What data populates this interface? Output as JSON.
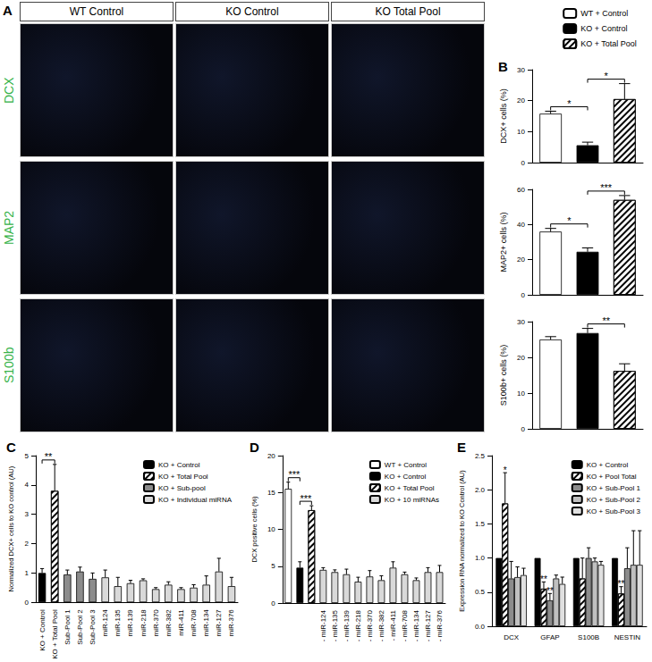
{
  "panel_a": {
    "label": "A",
    "columns": [
      "WT Control",
      "KO Control",
      "KO Total Pool"
    ],
    "rows": [
      "DCX",
      "MAP2",
      "S100b"
    ]
  },
  "chart_data": [
    {
      "panel": "B",
      "type": "bar",
      "y_label": "DCX+ cells (%)",
      "categories": [
        null,
        null,
        null
      ],
      "series": [
        {
          "name": "WT + Control",
          "color": "#ffffff",
          "values": [
            15.8,
            null,
            null
          ],
          "errors": [
            0.8,
            null,
            null
          ]
        },
        {
          "name": "KO + Control",
          "color": "#000000",
          "values": [
            null,
            5.6,
            null
          ],
          "errors": [
            null,
            1.0,
            null
          ]
        },
        {
          "name": "KO + Total Pool",
          "color": "#ffffff",
          "values": [
            null,
            null,
            20.5
          ],
          "errors": [
            null,
            null,
            5.0
          ]
        }
      ],
      "ylim": [
        0,
        30
      ],
      "yticks": [
        0,
        10,
        20,
        30
      ],
      "grid": false,
      "legend": "top-right",
      "tick_labels": "y",
      "annotations": [
        {
          "between": [
            "WT + Control",
            "KO + Control"
          ],
          "text": "*"
        },
        {
          "between": [
            "KO + Control",
            "KO + Total Pool"
          ],
          "text": "*"
        }
      ]
    },
    {
      "type": "bar",
      "y_label": "MAP2+ cells (%)",
      "categories": [
        null,
        null,
        null
      ],
      "series": [
        {
          "name": "WT + Control",
          "color": "#ffffff",
          "values": [
            36,
            null,
            null
          ],
          "errors": [
            1.8,
            null,
            null
          ]
        },
        {
          "name": "KO + Control",
          "color": "#000000",
          "values": [
            null,
            24.5,
            null
          ],
          "errors": [
            null,
            2.2,
            null
          ]
        },
        {
          "name": "KO + Total Pool",
          "color": "#ffffff",
          "values": [
            null,
            null,
            54
          ],
          "errors": [
            null,
            null,
            2.5
          ]
        }
      ],
      "ylim": [
        0,
        60
      ],
      "yticks": [
        0,
        20,
        40,
        60
      ],
      "grid": false,
      "tick_labels": "y",
      "annotations": [
        {
          "between": [
            "WT + Control",
            "KO + Control"
          ],
          "text": "*"
        },
        {
          "between": [
            "KO + Control",
            "KO + Total Pool"
          ],
          "text": "***"
        }
      ]
    },
    {
      "type": "bar",
      "y_label": "S100b+ cells (%)",
      "categories": [
        null,
        null,
        null
      ],
      "series": [
        {
          "name": "WT + Control",
          "color": "#ffffff",
          "values": [
            25,
            null,
            null
          ],
          "errors": [
            0.8,
            null,
            null
          ]
        },
        {
          "name": "KO + Control",
          "color": "#000000",
          "values": [
            null,
            26.8,
            null
          ],
          "errors": [
            null,
            1.3,
            null
          ]
        },
        {
          "name": "KO + Total Pool",
          "color": "#ffffff",
          "values": [
            null,
            null,
            16.2
          ],
          "errors": [
            null,
            null,
            2.0
          ]
        }
      ],
      "ylim": [
        0,
        30
      ],
      "yticks": [
        0,
        10,
        20,
        30
      ],
      "grid": false,
      "tick_labels": "y",
      "annotations": [
        {
          "between": [
            "KO + Control",
            "KO + Total Pool"
          ],
          "text": "**"
        }
      ]
    },
    {
      "panel": "C",
      "type": "bar",
      "y_label": "Normalized DCX+ cells to KO control (AU)",
      "categories": [
        "KO + Control",
        "KO + Total Pool",
        "Sub-Pool 1",
        "Sub-Pool 2",
        "Sub-Pool 3",
        "miR-124",
        "miR-135",
        "miR-139",
        "miR-218",
        "miR-370",
        "miR-382",
        "miR-411",
        "miR-708",
        "miR-134",
        "miR-127",
        "miR-376"
      ],
      "series": [
        {
          "name": "KO + Control",
          "color": "#000000",
          "values": [
            1.0,
            null,
            null,
            null,
            null,
            null,
            null,
            null,
            null,
            null,
            null,
            null,
            null,
            null,
            null,
            null
          ],
          "errors": [
            0.15,
            null,
            null,
            null,
            null,
            null,
            null,
            null,
            null,
            null,
            null,
            null,
            null,
            null,
            null,
            null
          ]
        },
        {
          "name": "KO + Total Pool",
          "color": "#ffffff",
          "values": [
            null,
            3.8,
            null,
            null,
            null,
            null,
            null,
            null,
            null,
            null,
            null,
            null,
            null,
            null,
            null,
            null
          ],
          "errors": [
            null,
            0.9,
            null,
            null,
            null,
            null,
            null,
            null,
            null,
            null,
            null,
            null,
            null,
            null,
            null,
            null
          ]
        },
        {
          "name": "KO + Sub-pool",
          "color": "#8c8c8c",
          "values": [
            null,
            null,
            0.95,
            1.05,
            0.8,
            null,
            null,
            null,
            null,
            null,
            null,
            null,
            null,
            null,
            null,
            null
          ],
          "errors": [
            null,
            null,
            0.15,
            0.15,
            0.2,
            null,
            null,
            null,
            null,
            null,
            null,
            null,
            null,
            null,
            null,
            null
          ]
        },
        {
          "name": "KO + Individual miRNA",
          "color": "#d9d9d9",
          "values": [
            null,
            null,
            null,
            null,
            null,
            0.85,
            0.55,
            0.65,
            0.75,
            0.45,
            0.6,
            0.45,
            0.5,
            0.6,
            1.05,
            0.55
          ],
          "errors": [
            null,
            null,
            null,
            null,
            null,
            0.25,
            0.3,
            0.1,
            0.05,
            0.05,
            0.1,
            0.05,
            0.1,
            0.3,
            0.45,
            0.3
          ]
        }
      ],
      "ylim": [
        0,
        5
      ],
      "yticks": [
        0,
        1,
        2,
        3,
        4,
        5
      ],
      "grid": false,
      "legend": "top-right",
      "annotations": [
        {
          "between": [
            "KO + Control",
            "KO + Total Pool"
          ],
          "text": "**"
        }
      ]
    },
    {
      "panel": "D",
      "type": "bar",
      "y_label": "DCX positive cells (%)",
      "categories": [
        null,
        null,
        null,
        "- miR-124",
        "- miR-135",
        "- miR-139",
        "- miR-218",
        "- miR-370",
        "- miR-382",
        "- miR-411",
        "- miR-708",
        "- miR-134",
        "- miR-127",
        "- miR-376"
      ],
      "series": [
        {
          "name": "WT + Control",
          "color": "#ffffff",
          "values": [
            15.5,
            null,
            null,
            null,
            null,
            null,
            null,
            null,
            null,
            null,
            null,
            null,
            null,
            null
          ],
          "errors": [
            0.9,
            null,
            null,
            null,
            null,
            null,
            null,
            null,
            null,
            null,
            null,
            null,
            null,
            null
          ]
        },
        {
          "name": "KO + Control",
          "color": "#000000",
          "values": [
            null,
            4.8,
            null,
            null,
            null,
            null,
            null,
            null,
            null,
            null,
            null,
            null,
            null,
            null
          ],
          "errors": [
            null,
            0.8,
            null,
            null,
            null,
            null,
            null,
            null,
            null,
            null,
            null,
            null,
            null,
            null
          ]
        },
        {
          "name": "KO + Total Pool",
          "color": "#ffffff",
          "values": [
            null,
            null,
            12.6,
            null,
            null,
            null,
            null,
            null,
            null,
            null,
            null,
            null,
            null,
            null
          ],
          "errors": [
            null,
            null,
            0.6,
            null,
            null,
            null,
            null,
            null,
            null,
            null,
            null,
            null,
            null,
            null
          ]
        },
        {
          "name": "KO + 10 miRNAs",
          "color": "#d9d9d9",
          "values": [
            null,
            null,
            null,
            4.5,
            4.2,
            3.9,
            2.9,
            3.6,
            3.1,
            4.8,
            3.9,
            3.1,
            4.2,
            4.2
          ],
          "errors": [
            null,
            null,
            null,
            0.3,
            0.3,
            0.7,
            0.6,
            0.8,
            0.6,
            0.8,
            0.3,
            0.3,
            0.6,
            0.9
          ]
        }
      ],
      "ylim": [
        0,
        20
      ],
      "yticks": [
        0,
        5,
        10,
        15,
        20
      ],
      "grid": false,
      "legend": "top-right",
      "annotations": [
        {
          "between": [
            "WT + Control",
            "KO + Control"
          ],
          "text": "***"
        },
        {
          "between": [
            "KO + Control",
            "KO + Total Pool"
          ],
          "text": "***"
        }
      ]
    },
    {
      "panel": "E",
      "type": "bar",
      "y_label": "Expression RNA normalized to KO Control (AU)",
      "categories": [
        "DCX",
        "GFAP",
        "S100B",
        "NESTIN"
      ],
      "series": [
        {
          "name": "KO + Control",
          "color": "#000000",
          "values": [
            1.0,
            1.0,
            1.0,
            1.0
          ],
          "errors": [
            null,
            null,
            null,
            null
          ]
        },
        {
          "name": "KO + Pool Total",
          "color": "#ffffff",
          "values": [
            1.8,
            0.55,
            0.7,
            0.48
          ],
          "errors": [
            0.45,
            0.1,
            0.3,
            0.1
          ]
        },
        {
          "name": "KO + Sub-Pool 1",
          "color": "#8c8c8c",
          "values": [
            0.7,
            0.38,
            1.0,
            0.85
          ],
          "errors": [
            0.25,
            0.1,
            0.15,
            0.3
          ]
        },
        {
          "name": "KO + Sub-Pool 2",
          "color": "#c0c0c0",
          "values": [
            0.72,
            0.7,
            0.95,
            0.9
          ],
          "errors": [
            0.15,
            0.05,
            0.05,
            0.5
          ]
        },
        {
          "name": "KO + Sub-Pool 3",
          "color": "#e0e0e0",
          "values": [
            0.75,
            0.62,
            0.9,
            0.9
          ],
          "errors": [
            0.1,
            0.1,
            0.05,
            0.5
          ]
        }
      ],
      "ylim": [
        0,
        2.5
      ],
      "yticks": [
        {
          "value": 0,
          "label": "0.0"
        },
        {
          "value": 0.5,
          "label": "0.5"
        },
        {
          "value": 1,
          "label": "1.0"
        },
        {
          "value": 1.5,
          "label": "1.5"
        },
        {
          "value": 2,
          "label": "2.0"
        },
        {
          "value": 2.5,
          "label": "2.5"
        }
      ],
      "grid": false,
      "legend": "top-right",
      "annotations": [
        {
          "series": "KO + Pool Total",
          "category": "DCX",
          "text": "*"
        },
        {
          "series": "KO + Pool Total",
          "category": "GFAP",
          "text": "**"
        },
        {
          "series": "KO + Sub-Pool 1",
          "category": "GFAP",
          "text": "**"
        },
        {
          "series": "KO + Pool Total",
          "category": "NESTIN",
          "text": "**"
        }
      ]
    }
  ]
}
